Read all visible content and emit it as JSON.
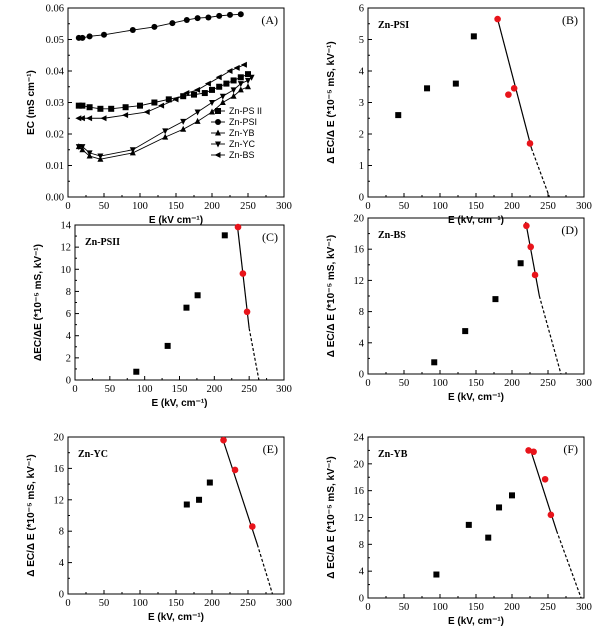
{
  "chart_data": [
    {
      "id": "A",
      "type": "line",
      "panel_label": "(A)",
      "xlabel": "E (kV cm⁻¹)",
      "ylabel": "EC (mS cm⁻¹)",
      "xlim": [
        0,
        300
      ],
      "ylim": [
        0,
        0.06
      ],
      "xticks": [
        "0",
        "50",
        "100",
        "150",
        "200",
        "250",
        "300"
      ],
      "yticks": [
        "0.00",
        "0.01",
        "0.02",
        "0.03",
        "0.04",
        "0.05",
        "0.06"
      ],
      "legend_position": "center-right",
      "series": [
        {
          "name": "Zn-PS II",
          "marker": "square",
          "x": [
            15,
            20,
            30,
            45,
            60,
            80,
            100,
            120,
            140,
            160,
            175,
            190,
            200,
            210,
            220,
            230,
            240,
            250
          ],
          "y": [
            0.029,
            0.029,
            0.0285,
            0.028,
            0.028,
            0.0285,
            0.029,
            0.03,
            0.031,
            0.032,
            0.0325,
            0.033,
            0.034,
            0.035,
            0.036,
            0.037,
            0.038,
            0.039
          ]
        },
        {
          "name": "Zn-PSI",
          "marker": "circle",
          "x": [
            15,
            20,
            30,
            50,
            90,
            120,
            145,
            165,
            180,
            195,
            210,
            225,
            240
          ],
          "y": [
            0.0505,
            0.0505,
            0.051,
            0.0515,
            0.053,
            0.054,
            0.0552,
            0.0562,
            0.0568,
            0.057,
            0.0575,
            0.0578,
            0.058
          ]
        },
        {
          "name": "Zn-YB",
          "marker": "triangle-up",
          "x": [
            15,
            20,
            30,
            45,
            90,
            135,
            160,
            180,
            200,
            215,
            230,
            240,
            250
          ],
          "y": [
            0.016,
            0.015,
            0.013,
            0.012,
            0.014,
            0.019,
            0.0215,
            0.024,
            0.027,
            0.03,
            0.032,
            0.034,
            0.035
          ]
        },
        {
          "name": "Zn-YC",
          "marker": "triangle-down",
          "x": [
            15,
            20,
            30,
            45,
            90,
            135,
            160,
            180,
            200,
            215,
            230,
            240,
            250,
            255
          ],
          "y": [
            0.016,
            0.016,
            0.014,
            0.013,
            0.015,
            0.021,
            0.024,
            0.027,
            0.03,
            0.032,
            0.034,
            0.036,
            0.037,
            0.038
          ]
        },
        {
          "name": "Zn-BS",
          "marker": "triangle-left",
          "x": [
            15,
            20,
            30,
            50,
            80,
            110,
            130,
            150,
            165,
            180,
            195,
            210,
            225,
            235,
            245
          ],
          "y": [
            0.025,
            0.025,
            0.025,
            0.025,
            0.026,
            0.027,
            0.029,
            0.031,
            0.033,
            0.034,
            0.036,
            0.038,
            0.04,
            0.041,
            0.042
          ]
        }
      ]
    },
    {
      "id": "B",
      "type": "scatter",
      "panel_label": "(B)",
      "series_label": "Zn-PSI",
      "xlabel": "E (kV, cm⁻¹)",
      "ylabel": "Δ EC/Δ E (*10⁻⁵ mS, kV⁻¹)",
      "xlim": [
        0,
        300
      ],
      "ylim": [
        0,
        6
      ],
      "xticks": [
        "0",
        "50",
        "100",
        "150",
        "200",
        "250",
        "300"
      ],
      "yticks": [
        "0",
        "1",
        "2",
        "3",
        "4",
        "5",
        "6"
      ],
      "black_points": {
        "x": [
          42,
          82,
          122,
          147
        ],
        "y": [
          2.6,
          3.45,
          3.6,
          5.1
        ]
      },
      "red_points": {
        "x": [
          180,
          195,
          203,
          225
        ],
        "y": [
          5.65,
          3.25,
          3.45,
          1.7
        ]
      },
      "fit_line": {
        "x": [
          180,
          227
        ],
        "y": [
          5.65,
          1.55
        ]
      },
      "fit_extrapolation": {
        "x": [
          227,
          252
        ],
        "y": [
          1.55,
          0
        ]
      }
    },
    {
      "id": "C",
      "type": "scatter",
      "panel_label": "(C)",
      "series_label": "Zn-PSII",
      "xlabel": "E (kV, cm⁻¹)",
      "ylabel": "ΔEC/ΔE (*10⁻⁵ mS, kV⁻¹)",
      "xlim": [
        0,
        300
      ],
      "ylim": [
        0,
        15
      ],
      "xticks": [
        "0",
        "50",
        "100",
        "150",
        "200",
        "250",
        "300"
      ],
      "yticks": [
        "0",
        "2",
        "4",
        "6",
        "8",
        "10",
        "12",
        "14"
      ],
      "black_points": {
        "x": [
          88,
          133,
          160,
          176,
          215
        ],
        "y": [
          0.8,
          3.3,
          7.0,
          8.2,
          14.0
        ]
      },
      "red_points": {
        "x": [
          234,
          241,
          247
        ],
        "y": [
          14.8,
          10.3,
          6.6
        ]
      },
      "fit_line": {
        "x": [
          233,
          250
        ],
        "y": [
          15.0,
          5.0
        ]
      },
      "fit_extrapolation": {
        "x": [
          250,
          264
        ],
        "y": [
          5.0,
          0
        ]
      }
    },
    {
      "id": "D",
      "type": "scatter",
      "panel_label": "(D)",
      "series_label": "Zn-BS",
      "xlabel": "E (kV, cm⁻¹)",
      "ylabel": "Δ EC/Δ E (*10⁻⁵ mS, kV⁻¹)",
      "xlim": [
        0,
        300
      ],
      "ylim": [
        0,
        20
      ],
      "xticks": [
        "0",
        "50",
        "100",
        "150",
        "200",
        "250",
        "300"
      ],
      "yticks": [
        "0",
        "4",
        "8",
        "12",
        "16",
        "20"
      ],
      "black_points": {
        "x": [
          92,
          135,
          177,
          212
        ],
        "y": [
          1.5,
          5.5,
          9.6,
          14.2
        ]
      },
      "red_points": {
        "x": [
          220,
          226,
          232
        ],
        "y": [
          19.0,
          16.3,
          12.7
        ]
      },
      "fit_line": {
        "x": [
          219,
          238
        ],
        "y": [
          19.5,
          10.0
        ]
      },
      "fit_extrapolation": {
        "x": [
          238,
          268
        ],
        "y": [
          10.0,
          0
        ]
      }
    },
    {
      "id": "E",
      "type": "scatter",
      "panel_label": "(E)",
      "series_label": "Zn-YC",
      "xlabel": "E (kV, cm⁻¹)",
      "ylabel": "Δ EC/Δ E (*10⁻⁵ mS, kV⁻¹)",
      "xlim": [
        0,
        300
      ],
      "ylim": [
        0,
        20
      ],
      "xticks": [
        "0",
        "50",
        "100",
        "150",
        "200",
        "250",
        "300"
      ],
      "yticks": [
        "0",
        "4",
        "8",
        "12",
        "16",
        "20"
      ],
      "black_points": {
        "x": [
          165,
          182,
          197
        ],
        "y": [
          11.4,
          12.0,
          14.2
        ]
      },
      "red_points": {
        "x": [
          216,
          232,
          256
        ],
        "y": [
          19.6,
          15.8,
          8.6
        ]
      },
      "fit_line": {
        "x": [
          214,
          263
        ],
        "y": [
          20.0,
          6.3
        ]
      },
      "fit_extrapolation": {
        "x": [
          263,
          284
        ],
        "y": [
          6.3,
          0
        ]
      }
    },
    {
      "id": "F",
      "type": "scatter",
      "panel_label": "(F)",
      "series_label": "Zn-YB",
      "xlabel": "E (kV, cm⁻¹)",
      "ylabel": "Δ EC/Δ E (*10⁻⁵ mS, kV⁻¹)",
      "xlim": [
        0,
        300
      ],
      "ylim": [
        0,
        24
      ],
      "xticks": [
        "0",
        "50",
        "100",
        "150",
        "200",
        "250",
        "300"
      ],
      "yticks": [
        "0",
        "4",
        "8",
        "12",
        "16",
        "20",
        "24"
      ],
      "black_points": {
        "x": [
          95,
          140,
          167,
          182,
          200
        ],
        "y": [
          3.5,
          10.9,
          9.0,
          13.5,
          15.3
        ]
      },
      "red_points": {
        "x": [
          223,
          230,
          246,
          254
        ],
        "y": [
          22.0,
          21.8,
          17.7,
          12.4
        ]
      },
      "fit_line": {
        "x": [
          226,
          262
        ],
        "y": [
          22.0,
          10.0
        ]
      },
      "fit_extrapolation": {
        "x": [
          262,
          296
        ],
        "y": [
          10.0,
          0
        ]
      }
    }
  ]
}
